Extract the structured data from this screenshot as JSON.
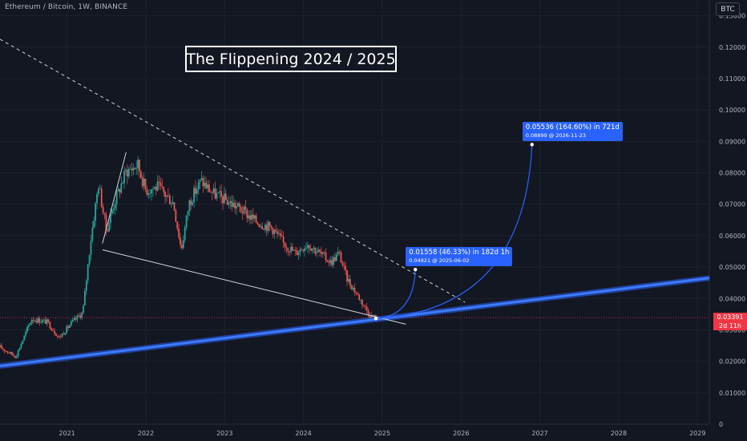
{
  "header": {
    "symbol_title": "Ethereum / Bitcoin, 1W, BINANCE",
    "currency_button": "BTC"
  },
  "annotations": {
    "headline": "The Flippening 2024 / 2025",
    "measure_1": {
      "line1": "0.01558 (46.33%) in 182d 1h",
      "line2": "0.04921 @ 2025-06-02"
    },
    "measure_2": {
      "line1": "0.05536 (164.60%) in 721d",
      "line2": "0.08899 @ 2026-11-23"
    }
  },
  "price_badge": {
    "price": "0.03391",
    "countdown": "2d 11h"
  },
  "colors": {
    "background": "#131722",
    "candle_up": "#26a69a",
    "candle_down": "#ef5350",
    "trend_blue": "#2962ff",
    "badge_red": "#f23645"
  },
  "chart_data": {
    "type": "candlestick",
    "title": "Ethereum / Bitcoin, 1W, BINANCE",
    "x_tick_labels": [
      "2021",
      "2022",
      "2023",
      "2024",
      "2025",
      "2026",
      "2027",
      "2028",
      "2029"
    ],
    "y_tick_labels": [
      "0",
      "0.01000",
      "0.02000",
      "0.03000",
      "0.04000",
      "0.05000",
      "0.06000",
      "0.07000",
      "0.08000",
      "0.09000",
      "0.10000",
      "0.11000",
      "0.12000",
      "0.13000"
    ],
    "ylim": [
      0,
      0.135
    ],
    "xlim": [
      2020.15,
      2029.15
    ],
    "current_price": 0.03391,
    "price_path": [
      [
        2020.15,
        0.0245
      ],
      [
        2020.35,
        0.0215
      ],
      [
        2020.55,
        0.0335
      ],
      [
        2020.75,
        0.0325
      ],
      [
        2020.9,
        0.0275
      ],
      [
        2021.05,
        0.032
      ],
      [
        2021.2,
        0.0355
      ],
      [
        2021.3,
        0.0585
      ],
      [
        2021.4,
        0.0765
      ],
      [
        2021.5,
        0.0615
      ],
      [
        2021.6,
        0.0705
      ],
      [
        2021.75,
        0.0805
      ],
      [
        2021.9,
        0.0825
      ],
      [
        2022.0,
        0.0745
      ],
      [
        2022.15,
        0.0755
      ],
      [
        2022.35,
        0.0705
      ],
      [
        2022.45,
        0.0555
      ],
      [
        2022.55,
        0.0705
      ],
      [
        2022.7,
        0.0775
      ],
      [
        2022.85,
        0.0735
      ],
      [
        2023.0,
        0.0715
      ],
      [
        2023.2,
        0.0685
      ],
      [
        2023.4,
        0.0645
      ],
      [
        2023.6,
        0.0625
      ],
      [
        2023.75,
        0.0575
      ],
      [
        2023.9,
        0.0545
      ],
      [
        2024.05,
        0.0575
      ],
      [
        2024.2,
        0.0545
      ],
      [
        2024.35,
        0.0515
      ],
      [
        2024.45,
        0.0545
      ],
      [
        2024.55,
        0.0465
      ],
      [
        2024.7,
        0.0405
      ],
      [
        2024.85,
        0.0345
      ],
      [
        2024.92,
        0.0339
      ]
    ],
    "lines": {
      "support_trend": {
        "from": [
          2020.15,
          0.0185
        ],
        "to": [
          2029.15,
          0.0465
        ]
      },
      "falling_resistance": {
        "from": [
          2020.15,
          0.1225
        ],
        "to": [
          2026.05,
          0.0388
        ]
      },
      "lower_wedge": {
        "from": [
          2021.45,
          0.0555
        ],
        "to": [
          2025.3,
          0.0318
        ]
      },
      "upper_wedge": {
        "from": [
          2021.45,
          0.0575
        ],
        "to": [
          2021.75,
          0.0865
        ]
      }
    },
    "projections": [
      {
        "from": [
          2024.92,
          0.03363
        ],
        "to": [
          2025.42,
          0.04921
        ],
        "label": "0.01558 (46.33%) in 182d 1h"
      },
      {
        "from": [
          2024.92,
          0.03363
        ],
        "to": [
          2026.9,
          0.08899
        ],
        "label": "0.05536 (164.60%) in 721d"
      }
    ]
  }
}
